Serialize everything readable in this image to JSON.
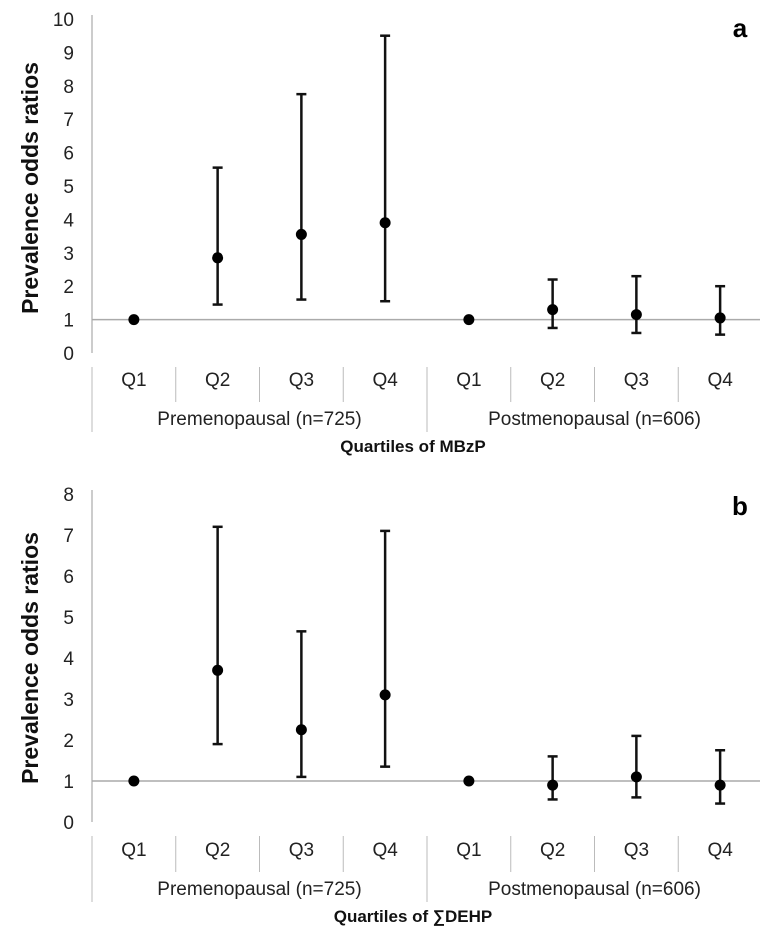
{
  "chart_data": [
    {
      "type": "scatter",
      "panel_label": "a",
      "ylabel": "Prevalence odds ratios",
      "xlabel": "Quartiles of MBzP",
      "ylim": [
        0,
        10
      ],
      "yticks": [
        0,
        1,
        2,
        3,
        4,
        5,
        6,
        7,
        8,
        9,
        10
      ],
      "reference_line": 1,
      "categories": [
        "Q1",
        "Q2",
        "Q3",
        "Q4",
        "Q1",
        "Q2",
        "Q3",
        "Q4"
      ],
      "groups": [
        "Premenopausal (n=725)",
        "Postmenopausal (n=606)"
      ],
      "values": [
        1.0,
        2.85,
        3.55,
        3.9,
        1.0,
        1.3,
        1.15,
        1.05
      ],
      "lower": [
        null,
        1.45,
        1.6,
        1.55,
        null,
        0.75,
        0.6,
        0.55
      ],
      "upper": [
        null,
        5.55,
        7.75,
        9.5,
        null,
        2.2,
        2.3,
        2.0
      ]
    },
    {
      "type": "scatter",
      "panel_label": "b",
      "ylabel": "Prevalence odds ratios",
      "xlabel": "Quartiles of ∑DEHP",
      "ylim": [
        0,
        8
      ],
      "yticks": [
        0,
        1,
        2,
        3,
        4,
        5,
        6,
        7,
        8
      ],
      "reference_line": 1,
      "categories": [
        "Q1",
        "Q2",
        "Q3",
        "Q4",
        "Q1",
        "Q2",
        "Q3",
        "Q4"
      ],
      "groups": [
        "Premenopausal (n=725)",
        "Postmenopausal (n=606)"
      ],
      "values": [
        1.0,
        3.7,
        2.25,
        3.1,
        1.0,
        0.9,
        1.1,
        0.9
      ],
      "lower": [
        null,
        1.9,
        1.1,
        1.35,
        null,
        0.55,
        0.6,
        0.45
      ],
      "upper": [
        null,
        7.2,
        4.65,
        7.1,
        null,
        1.6,
        2.1,
        1.75
      ]
    }
  ]
}
